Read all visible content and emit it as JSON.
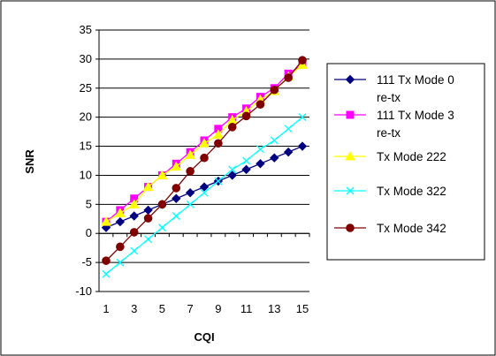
{
  "chart_data": {
    "type": "line",
    "title": "",
    "xlabel": "CQI",
    "ylabel": "SNR",
    "x": [
      1,
      2,
      3,
      4,
      5,
      6,
      7,
      8,
      9,
      10,
      11,
      12,
      13,
      14,
      15
    ],
    "x_ticks": [
      "1",
      "3",
      "5",
      "7",
      "9",
      "11",
      "13",
      "15"
    ],
    "x_tick_values": [
      1,
      3,
      5,
      7,
      9,
      11,
      13,
      15
    ],
    "xlim": [
      1,
      15
    ],
    "ylim": [
      -10,
      35
    ],
    "y_ticks": [
      "-10",
      "-5",
      "0",
      "5",
      "10",
      "15",
      "20",
      "25",
      "30",
      "35"
    ],
    "y_tick_values": [
      -10,
      -5,
      0,
      5,
      10,
      15,
      20,
      25,
      30,
      35
    ],
    "grid": "horizontal",
    "legend_position": "right",
    "series": [
      {
        "name": "111 Tx Mode 0 re-tx",
        "legend_lines": [
          "111 Tx Mode 0",
          "re-tx"
        ],
        "color": "#000080",
        "marker": "diamond",
        "values": [
          1,
          2,
          3,
          4,
          5,
          6,
          7,
          8,
          9,
          10,
          11,
          12,
          13,
          14,
          15
        ]
      },
      {
        "name": "111 Tx Mode 3 re-tx",
        "legend_lines": [
          "111 Tx Mode 3",
          "re-tx"
        ],
        "color": "#FF00FF",
        "marker": "square",
        "values": [
          2,
          4,
          6,
          8,
          10,
          12,
          14,
          16,
          18,
          20,
          21.5,
          23.5,
          25,
          27.5,
          29
        ]
      },
      {
        "name": "Tx Mode 222",
        "legend_lines": [
          "Tx Mode 222"
        ],
        "color": "#FFFF00",
        "marker": "triangle",
        "values": [
          2,
          3.5,
          5,
          8,
          10,
          11.5,
          13.5,
          15.5,
          17,
          19.5,
          21,
          23,
          24.5,
          27,
          29
        ]
      },
      {
        "name": "Tx Mode 322",
        "legend_lines": [
          "Tx Mode 322"
        ],
        "color": "#00FFFF",
        "marker": "x",
        "values": [
          -7,
          -5,
          -3,
          -1,
          1,
          3,
          5,
          7,
          9,
          11,
          12.5,
          14.5,
          16,
          18,
          20
        ]
      },
      {
        "name": "Tx Mode 342",
        "legend_lines": [
          "Tx Mode 342"
        ],
        "color": "#800000",
        "marker": "circle",
        "values": [
          -4.7,
          -2.3,
          0.2,
          2.6,
          5,
          7.8,
          10.7,
          13,
          15.5,
          18.3,
          20.2,
          22.2,
          24.7,
          26.8,
          29.8
        ]
      }
    ]
  }
}
